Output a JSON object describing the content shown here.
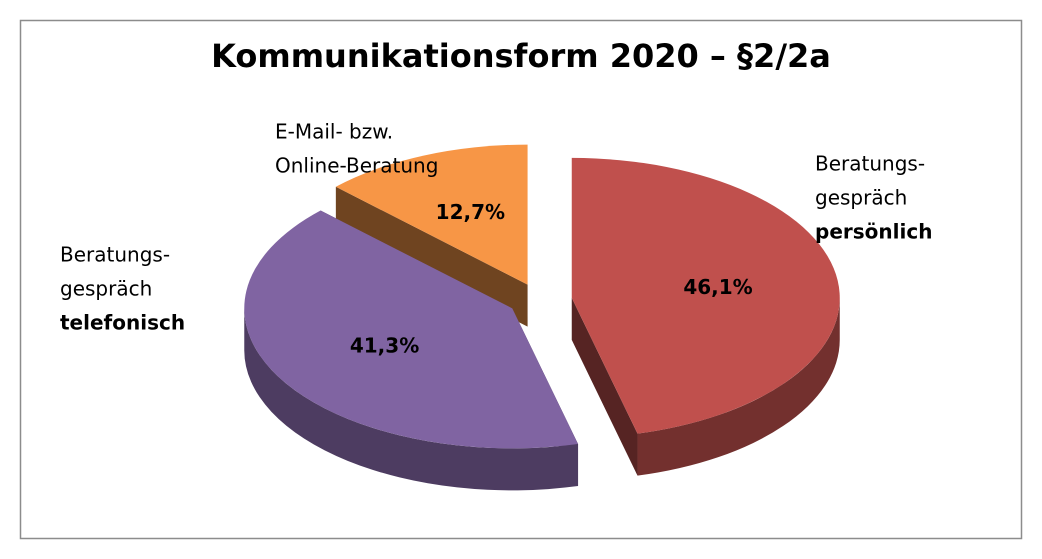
{
  "chart_data": {
    "type": "pie",
    "title": "Kommunikationsform 2020 – §2/2a",
    "categories": [
      [
        "Beratungs-",
        "gespräch",
        "persönlich"
      ],
      [
        "Beratungs-",
        "gespräch",
        "telefonisch"
      ],
      [
        "E-Mail- bzw.",
        "Online-Beratung"
      ]
    ],
    "values": [
      46.1,
      41.3,
      12.7
    ],
    "value_labels": [
      "46,1%",
      "41,3%",
      "12,7%"
    ],
    "colors": [
      "#c0504d",
      "#8064a2",
      "#f79646"
    ]
  }
}
